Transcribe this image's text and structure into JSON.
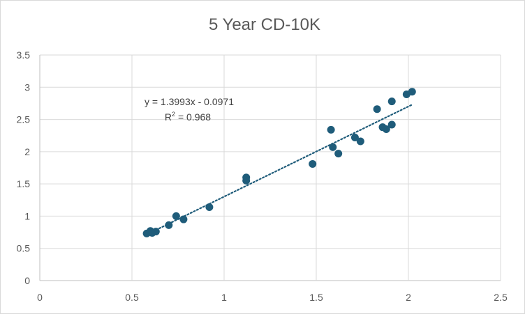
{
  "chart_data": {
    "type": "scatter",
    "title": "5 Year CD-10K",
    "xlabel": "",
    "ylabel": "",
    "xlim": [
      0,
      2.5
    ],
    "ylim": [
      0,
      3.5
    ],
    "x_ticks": [
      "0",
      "0.5",
      "1",
      "1.5",
      "2",
      "2.5"
    ],
    "y_ticks": [
      "0",
      "0.5",
      "1",
      "1.5",
      "2",
      "2.5",
      "3",
      "3.5"
    ],
    "grid": "on",
    "legend": "none",
    "series": [
      {
        "color": "#1f5c7a",
        "points": [
          {
            "x": 0.58,
            "y": 0.73
          },
          {
            "x": 0.6,
            "y": 0.77
          },
          {
            "x": 0.61,
            "y": 0.74
          },
          {
            "x": 0.63,
            "y": 0.76
          },
          {
            "x": 0.7,
            "y": 0.86
          },
          {
            "x": 0.74,
            "y": 1.0
          },
          {
            "x": 0.78,
            "y": 0.95
          },
          {
            "x": 0.92,
            "y": 1.14
          },
          {
            "x": 1.12,
            "y": 1.6
          },
          {
            "x": 1.12,
            "y": 1.55
          },
          {
            "x": 1.48,
            "y": 1.81
          },
          {
            "x": 1.58,
            "y": 2.34
          },
          {
            "x": 1.59,
            "y": 2.07
          },
          {
            "x": 1.62,
            "y": 1.97
          },
          {
            "x": 1.71,
            "y": 2.22
          },
          {
            "x": 1.74,
            "y": 2.16
          },
          {
            "x": 1.83,
            "y": 2.66
          },
          {
            "x": 1.86,
            "y": 2.38
          },
          {
            "x": 1.88,
            "y": 2.35
          },
          {
            "x": 1.91,
            "y": 2.78
          },
          {
            "x": 1.91,
            "y": 2.42
          },
          {
            "x": 1.99,
            "y": 2.89
          },
          {
            "x": 2.02,
            "y": 2.93
          }
        ]
      }
    ],
    "trendline": {
      "type": "linear",
      "style": "dotted",
      "color": "#1f5c7a",
      "slope": 1.3993,
      "intercept": -0.0971,
      "x_range": [
        0.58,
        2.02
      ],
      "equation_text": "y = 1.3993x - 0.0971",
      "r2_prefix": "R",
      "r2_exponent": "2",
      "r2_suffix": " = 0.968"
    }
  }
}
